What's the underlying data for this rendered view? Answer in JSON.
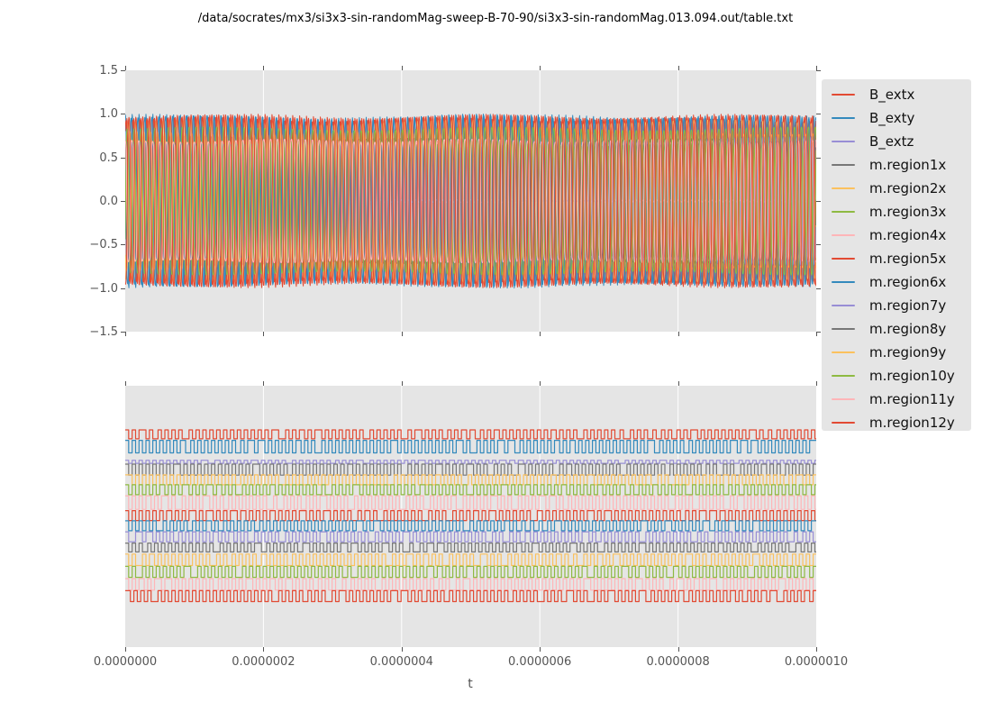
{
  "title": "/data/socrates/mx3/si3x3-sin-randomMag-sweep-B-70-90/si3x3-sin-randomMag.013.094.out/table.txt",
  "xlabel": "t",
  "colors": {
    "figure_bg": "#ffffff",
    "axes_bg": "#e5e5e5",
    "grid": "#ffffff",
    "tick": "#555555",
    "palette": [
      "#E24A33",
      "#348ABD",
      "#988ED5",
      "#777777",
      "#FBC15E",
      "#8EBA42",
      "#FFB5B8"
    ]
  },
  "legend": {
    "position": "outside-right",
    "entries": [
      {
        "label": "B_extx",
        "color": "#E24A33"
      },
      {
        "label": "B_exty",
        "color": "#348ABD"
      },
      {
        "label": "B_extz",
        "color": "#988ED5"
      },
      {
        "label": "m.region1x",
        "color": "#777777"
      },
      {
        "label": "m.region2x",
        "color": "#FBC15E"
      },
      {
        "label": "m.region3x",
        "color": "#8EBA42"
      },
      {
        "label": "m.region4x",
        "color": "#FFB5B8"
      },
      {
        "label": "m.region5x",
        "color": "#E24A33"
      },
      {
        "label": "m.region6x",
        "color": "#348ABD"
      },
      {
        "label": "m.region7y",
        "color": "#988ED5"
      },
      {
        "label": "m.region8y",
        "color": "#777777"
      },
      {
        "label": "m.region9y",
        "color": "#FBC15E"
      },
      {
        "label": "m.region10y",
        "color": "#8EBA42"
      },
      {
        "label": "m.region11y",
        "color": "#FFB5B8"
      },
      {
        "label": "m.region12y",
        "color": "#E24A33"
      }
    ]
  },
  "chart_data": [
    {
      "type": "line",
      "subplot": "top",
      "title": "",
      "xlabel": "t",
      "xlim": [
        0,
        1e-06
      ],
      "ylim": [
        -1.5,
        1.5
      ],
      "x_tick_labels": [
        "0.0000000",
        "0.0000002",
        "0.0000004",
        "0.0000006",
        "0.0000008",
        "0.0000010"
      ],
      "y_tick_labels": [
        "1.5",
        "1.0",
        "0.5",
        "0.0",
        "−0.5",
        "−1.0",
        "−1.5"
      ],
      "grid": "vertical white gridlines on gray background",
      "description": "All 15 traces overlaid; ~100 oscillation cycles across the window (period ~1e-8 s) spanning roughly -1 to +1.",
      "series": [
        {
          "name": "B_extx",
          "color": "#E24A33",
          "shape": "sine",
          "amplitude": 1.0,
          "cycles": 100.0,
          "phase": 0.0,
          "squareness": 1.0
        },
        {
          "name": "B_exty",
          "color": "#348ABD",
          "shape": "sine",
          "amplitude": 1.0,
          "cycles": 100.4,
          "phase": 0.23,
          "squareness": 1.0
        },
        {
          "name": "B_extz",
          "color": "#988ED5",
          "shape": "sine",
          "amplitude": 0.02,
          "cycles": 100.0,
          "phase": 0.11,
          "squareness": 1.0
        },
        {
          "name": "m.region1x",
          "color": "#777777",
          "shape": "sat",
          "amplitude": 0.72,
          "cycles": 99.6,
          "phase": 0.52,
          "squareness": 2.2
        },
        {
          "name": "m.region2x",
          "color": "#FBC15E",
          "shape": "sat",
          "amplitude": 0.93,
          "cycles": 100.2,
          "phase": 0.77,
          "squareness": 1.6
        },
        {
          "name": "m.region3x",
          "color": "#8EBA42",
          "shape": "sat",
          "amplitude": 0.66,
          "cycles": 99.8,
          "phase": 0.31,
          "squareness": 2.2
        },
        {
          "name": "m.region4x",
          "color": "#FFB5B8",
          "shape": "sat",
          "amplitude": 0.7,
          "cycles": 100.5,
          "phase": 0.89,
          "squareness": 2.2
        },
        {
          "name": "m.region5x",
          "color": "#E24A33",
          "shape": "sat",
          "amplitude": 0.96,
          "cycles": 100.1,
          "phase": 0.13,
          "squareness": 1.4
        },
        {
          "name": "m.region6x",
          "color": "#348ABD",
          "shape": "sat",
          "amplitude": 0.985,
          "cycles": 99.9,
          "phase": 0.41,
          "squareness": 1.3
        },
        {
          "name": "m.region7y",
          "color": "#988ED5",
          "shape": "sat",
          "amplitude": 0.74,
          "cycles": 100.3,
          "phase": 0.67,
          "squareness": 2.2
        },
        {
          "name": "m.region8y",
          "color": "#777777",
          "shape": "sat",
          "amplitude": 0.68,
          "cycles": 99.7,
          "phase": 0.05,
          "squareness": 2.2
        },
        {
          "name": "m.region9y",
          "color": "#FBC15E",
          "shape": "sat",
          "amplitude": 0.8,
          "cycles": 100.15,
          "phase": 0.58,
          "squareness": 2.0
        },
        {
          "name": "m.region10y",
          "color": "#8EBA42",
          "shape": "sat",
          "amplitude": 0.85,
          "cycles": 100.45,
          "phase": 0.95,
          "squareness": 1.8
        },
        {
          "name": "m.region11y",
          "color": "#FFB5B8",
          "shape": "sat",
          "amplitude": 0.71,
          "cycles": 99.55,
          "phase": 0.29,
          "squareness": 2.2
        },
        {
          "name": "m.region12y",
          "color": "#E24A33",
          "shape": "sat",
          "amplitude": 0.99,
          "cycles": 100.05,
          "phase": 0.71,
          "squareness": 1.3
        }
      ]
    },
    {
      "type": "line",
      "subplot": "bottom",
      "title": "",
      "xlabel": "t",
      "xlim": [
        0,
        1e-06
      ],
      "x_tick_labels": [
        "0.0000000",
        "0.0000002",
        "0.0000004",
        "0.0000006",
        "0.0000008",
        "0.0000010"
      ],
      "y_tick_labels": [],
      "grid": "vertical white gridlines on gray background",
      "description": "Same 15 traces drawn as vertically offset square-wave strips (~100 toggles across the window, occasional irregular pulse widths); no y tick labels.",
      "series": [
        {
          "name": "B_extx",
          "color": "#E24A33",
          "center_frac": 0.186,
          "half_frac": 0.017
        },
        {
          "name": "B_exty",
          "color": "#348ABD",
          "center_frac": 0.233,
          "half_frac": 0.024
        },
        {
          "name": "B_extz",
          "color": "#988ED5",
          "center_frac": 0.291,
          "half_frac": 0.006
        },
        {
          "name": "m.region1x",
          "color": "#777777",
          "center_frac": 0.321,
          "half_frac": 0.021
        },
        {
          "name": "m.region2x",
          "color": "#FBC15E",
          "center_frac": 0.36,
          "half_frac": 0.019
        },
        {
          "name": "m.region3x",
          "color": "#8EBA42",
          "center_frac": 0.398,
          "half_frac": 0.019
        },
        {
          "name": "m.region4x",
          "color": "#FFB5B8",
          "center_frac": 0.447,
          "half_frac": 0.026
        },
        {
          "name": "m.region5x",
          "color": "#E24A33",
          "center_frac": 0.497,
          "half_frac": 0.019
        },
        {
          "name": "m.region6x",
          "color": "#348ABD",
          "center_frac": 0.536,
          "half_frac": 0.019
        },
        {
          "name": "m.region7y",
          "color": "#988ED5",
          "center_frac": 0.578,
          "half_frac": 0.019
        },
        {
          "name": "m.region8y",
          "color": "#777777",
          "center_frac": 0.619,
          "half_frac": 0.017
        },
        {
          "name": "m.region9y",
          "color": "#FBC15E",
          "center_frac": 0.666,
          "half_frac": 0.022
        },
        {
          "name": "m.region10y",
          "color": "#8EBA42",
          "center_frac": 0.712,
          "half_frac": 0.021
        },
        {
          "name": "m.region11y",
          "color": "#FFB5B8",
          "center_frac": 0.76,
          "half_frac": 0.022
        },
        {
          "name": "m.region12y",
          "color": "#E24A33",
          "center_frac": 0.805,
          "half_frac": 0.021
        }
      ]
    }
  ]
}
